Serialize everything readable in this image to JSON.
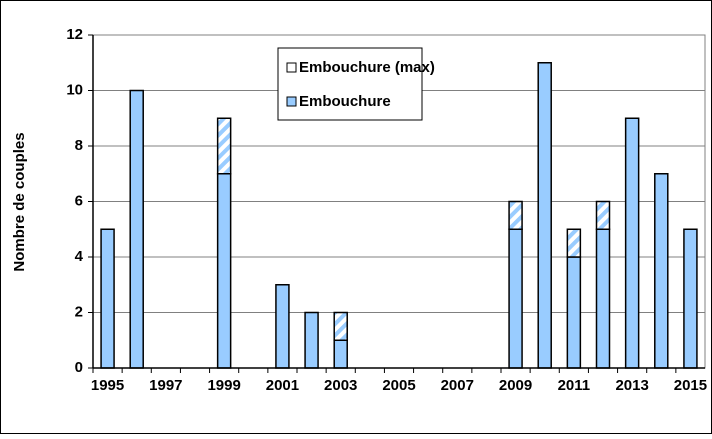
{
  "chart_data": {
    "type": "stacked-bar",
    "y_label": "Nombre de couples",
    "categories": [
      "1995",
      null,
      "1997",
      null,
      "1999",
      null,
      "2001",
      null,
      "2003",
      null,
      "2005",
      null,
      "2007",
      null,
      "2009",
      null,
      "2011",
      null,
      "2013",
      null,
      "2015"
    ],
    "series": [
      {
        "name": "Embouchure",
        "color": "#99ccff",
        "values": [
          5,
          10,
          0,
          0,
          7,
          0,
          3,
          2,
          1,
          0,
          0,
          0,
          0,
          0,
          5,
          11,
          4,
          5,
          9,
          7,
          5
        ]
      },
      {
        "name": "Embouchure (max)",
        "color": "#ffffff",
        "values": [
          0,
          0,
          0,
          0,
          2,
          0,
          0,
          0,
          1,
          0,
          0,
          0,
          0,
          0,
          1,
          0,
          1,
          1,
          0,
          0,
          0
        ]
      }
    ],
    "ylim": [
      0,
      12
    ],
    "yticks": [
      0,
      2,
      4,
      6,
      8,
      10,
      12
    ],
    "grid": true
  }
}
